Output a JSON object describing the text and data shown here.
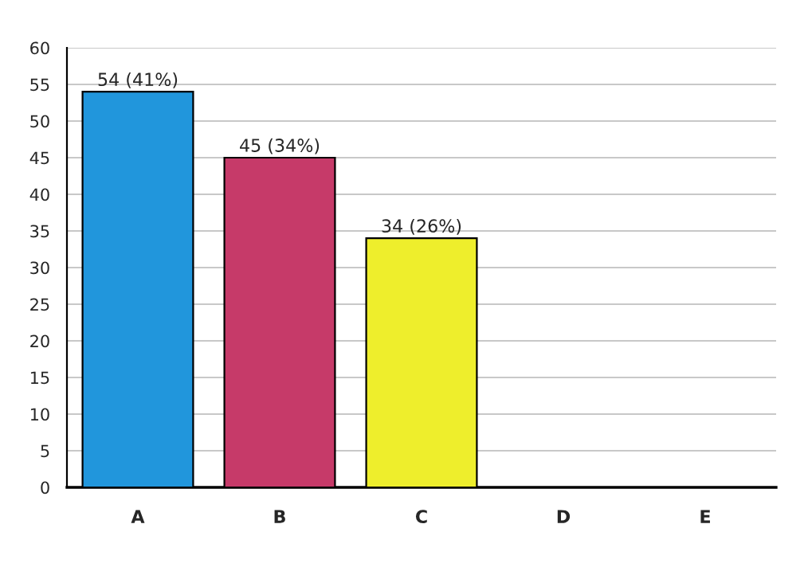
{
  "chart_data": {
    "type": "bar",
    "categories": [
      "A",
      "B",
      "C",
      "D",
      "E"
    ],
    "values": [
      54,
      45,
      34,
      0,
      0
    ],
    "colors": [
      "#2196dc",
      "#c63a69",
      "#eeee2c",
      "#000000",
      "#000000"
    ],
    "value_labels": [
      "54 (41%)",
      "45 (34%)",
      "34 (26%)",
      null,
      null
    ],
    "ylim": [
      0,
      60
    ],
    "yticks": [
      0,
      5,
      10,
      15,
      20,
      25,
      30,
      35,
      40,
      45,
      50,
      55,
      60
    ],
    "grid": "y",
    "legend": false
  }
}
